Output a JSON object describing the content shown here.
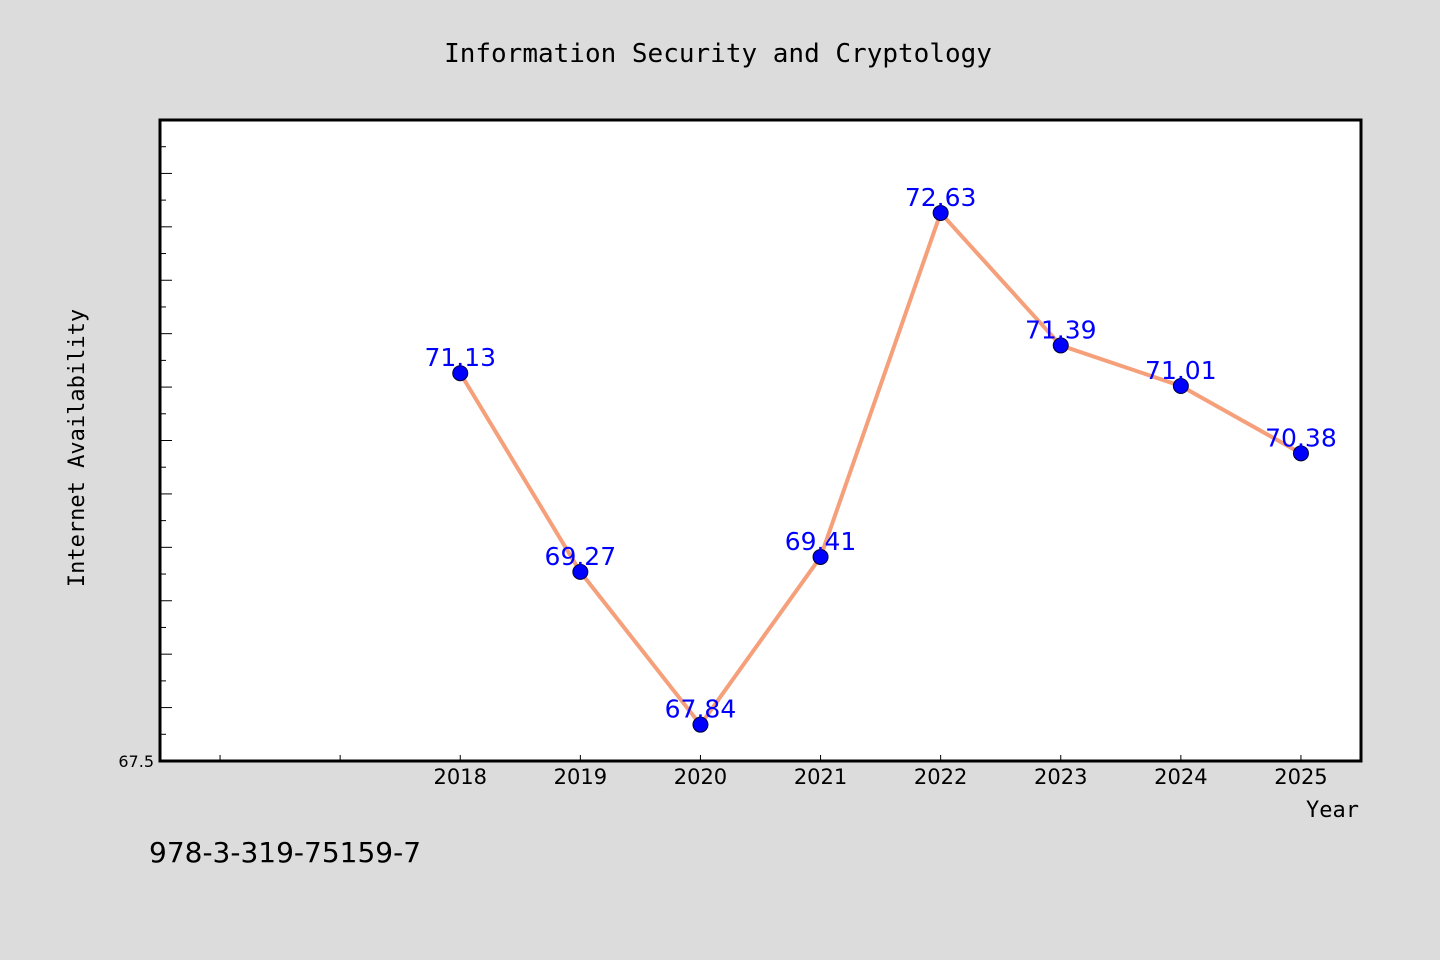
{
  "chart_data": {
    "type": "line",
    "title": "Information Security and Cryptology",
    "xlabel": "Year",
    "ylabel": "Internet Availability",
    "x": [
      2018,
      2019,
      2020,
      2021,
      2022,
      2023,
      2024,
      2025
    ],
    "series": [
      {
        "values": [
          71.13,
          69.27,
          67.84,
          69.41,
          72.63,
          71.39,
          71.01,
          70.38
        ],
        "line_color": "#f5a07a",
        "marker_color": "#0000ff"
      }
    ],
    "data_labels": [
      "71.13",
      "69.27",
      "67.84",
      "69.41",
      "72.63",
      "71.39",
      "71.01",
      "70.38"
    ],
    "y_tick_labels": [
      "67.5"
    ],
    "x_tick_labels": [
      "2018",
      "2019",
      "2020",
      "2021",
      "2022",
      "2023",
      "2024",
      "2025"
    ],
    "ylim": [
      67.5,
      73.5
    ],
    "xlim": [
      2015.5,
      2025.5
    ],
    "grid": false,
    "legend": false,
    "label_color": "#0000ff"
  },
  "footer": {
    "isbn": "978-3-319-75159-7"
  }
}
